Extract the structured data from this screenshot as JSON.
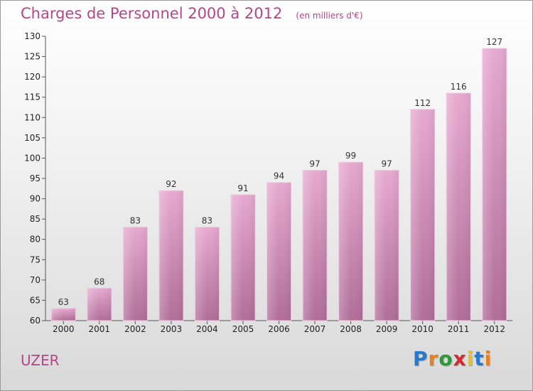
{
  "chart_data": {
    "type": "bar",
    "title": "Charges de Personnel 2000 à 2012",
    "subtitle": "(en milliers d'€)",
    "categories": [
      "2000",
      "2001",
      "2002",
      "2003",
      "2004",
      "2005",
      "2006",
      "2007",
      "2008",
      "2009",
      "2010",
      "2011",
      "2012"
    ],
    "values": [
      63,
      68,
      83,
      92,
      83,
      91,
      94,
      97,
      99,
      97,
      112,
      116,
      127
    ],
    "ylim": [
      60,
      130
    ],
    "yticks": [
      60,
      65,
      70,
      75,
      80,
      85,
      90,
      95,
      100,
      105,
      110,
      115,
      120,
      125,
      130
    ],
    "grid": false,
    "bar_color": "#d58fba",
    "text_color": "#b5468a"
  },
  "city": "UZER",
  "logo": {
    "letters": [
      "P",
      "r",
      "o",
      "x",
      "i",
      "t",
      "i"
    ],
    "colors": [
      "#2a78c8",
      "#e8801e",
      "#2a9a3a",
      "#d6262e",
      "#e8c21e",
      "#2a78c8",
      "#e8801e"
    ]
  }
}
